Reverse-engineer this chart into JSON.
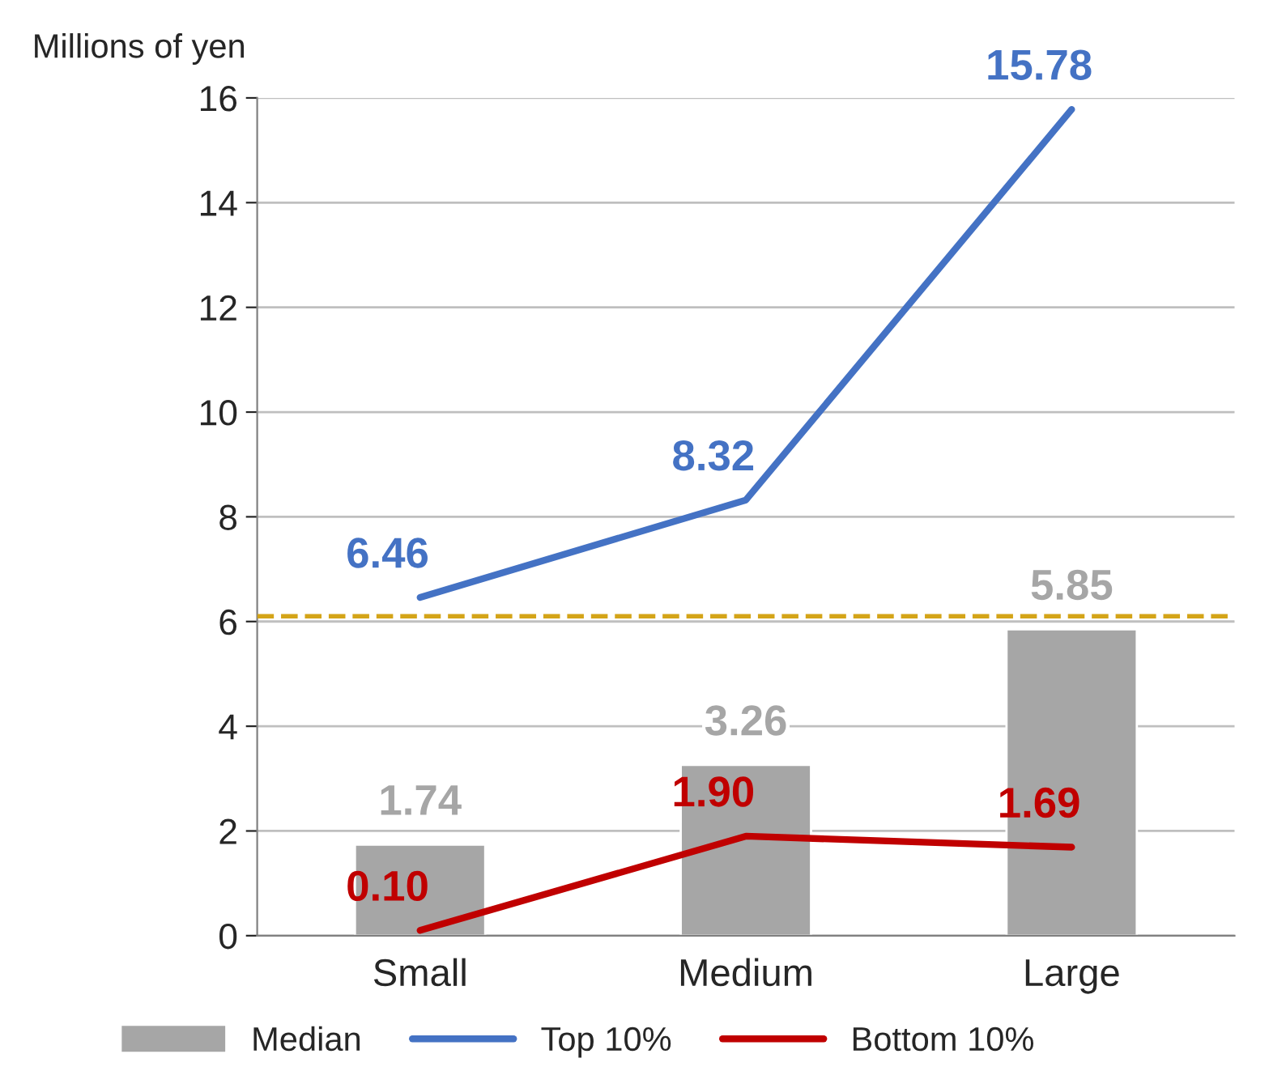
{
  "chart_data": {
    "type": "bar",
    "ylabel": "Millions of yen",
    "categories": [
      "Small",
      "Medium",
      "Large"
    ],
    "series": [
      {
        "name": "Median",
        "color": "#a6a6a6",
        "values": [
          1.74,
          3.26,
          5.85
        ],
        "value_labels": [
          "1.74",
          "3.26",
          "5.85"
        ]
      },
      {
        "name": "Top 10%",
        "type": "line",
        "color": "#4472c4",
        "values": [
          6.46,
          8.32,
          15.78
        ],
        "value_labels": [
          "6.46",
          "8.32",
          "15.78"
        ]
      },
      {
        "name": "Bottom 10%",
        "type": "line",
        "color": "#c00000",
        "values": [
          0.1,
          1.9,
          1.69
        ],
        "value_labels": [
          "0.10",
          "1.90",
          "1.69"
        ]
      }
    ],
    "ref_lines": [
      {
        "axis": "y",
        "value": 6.1,
        "color": "#d4a418",
        "line_style": "dashed"
      }
    ],
    "ylim": [
      0,
      16
    ],
    "yticks": [
      0,
      2,
      4,
      6,
      8,
      10,
      12,
      14,
      16
    ],
    "grid": "y",
    "legend": "bottom",
    "line_style": "solid",
    "marker": "none"
  }
}
